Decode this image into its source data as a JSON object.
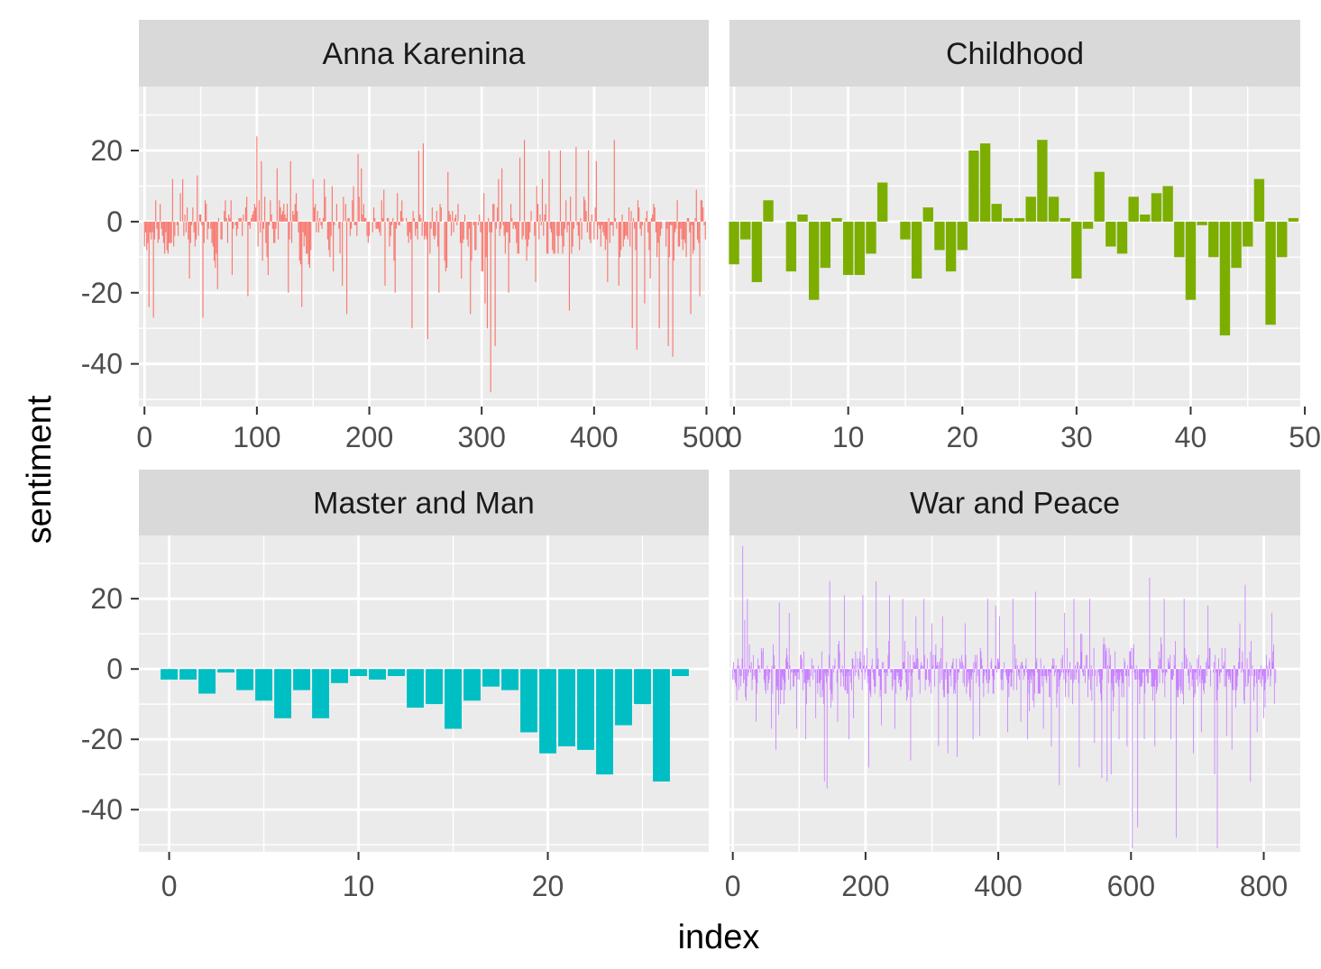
{
  "chart_data": {
    "type": "bar",
    "facet_layout": "2x2",
    "scales": "free_x",
    "xlabel": "index",
    "ylabel": "sentiment",
    "ylim": [
      -52,
      38
    ],
    "y_ticks": [
      20,
      0,
      -20,
      -40
    ],
    "legend": "none",
    "panel_background": "#EBEBEB",
    "strip_background": "#D9D9D9",
    "grid": true,
    "panels": [
      {
        "name": "Anna Karenina",
        "color": "#F8766D",
        "xlim": [
          -5,
          502
        ],
        "x_ticks": [
          0,
          100,
          200,
          300,
          400,
          500
        ],
        "bar_width": 0.9,
        "series_generated": true,
        "n": 500,
        "seed": 11,
        "spread": 7,
        "bias": -2,
        "peaks": [
          [
            4,
            -24
          ],
          [
            8,
            -27
          ],
          [
            20,
            -8
          ],
          [
            25,
            12
          ],
          [
            34,
            12
          ],
          [
            47,
            13
          ],
          [
            52,
            -27
          ],
          [
            65,
            -19
          ],
          [
            78,
            -15
          ],
          [
            92,
            -21
          ],
          [
            100,
            24
          ],
          [
            104,
            17
          ],
          [
            110,
            -15
          ],
          [
            118,
            15
          ],
          [
            128,
            -20
          ],
          [
            130,
            17
          ],
          [
            140,
            -24
          ],
          [
            150,
            12
          ],
          [
            160,
            12
          ],
          [
            168,
            -14
          ],
          [
            176,
            -18
          ],
          [
            180,
            -26
          ],
          [
            190,
            19
          ],
          [
            193,
            15
          ],
          [
            214,
            -18
          ],
          [
            223,
            -20
          ],
          [
            238,
            -30
          ],
          [
            244,
            20
          ],
          [
            248,
            22
          ],
          [
            252,
            -33
          ],
          [
            262,
            -20
          ],
          [
            270,
            14
          ],
          [
            282,
            -16
          ],
          [
            290,
            -26
          ],
          [
            301,
            -14
          ],
          [
            303,
            -23
          ],
          [
            305,
            -30
          ],
          [
            308,
            -48
          ],
          [
            312,
            -35
          ],
          [
            318,
            15
          ],
          [
            324,
            -20
          ],
          [
            334,
            18
          ],
          [
            338,
            23
          ],
          [
            348,
            -17
          ],
          [
            354,
            12
          ],
          [
            360,
            20
          ],
          [
            370,
            20
          ],
          [
            378,
            -25
          ],
          [
            384,
            21
          ],
          [
            395,
            20
          ],
          [
            402,
            17
          ],
          [
            412,
            -17
          ],
          [
            418,
            23
          ],
          [
            422,
            -18
          ],
          [
            434,
            -30
          ],
          [
            438,
            -36
          ],
          [
            445,
            -23
          ],
          [
            450,
            -16
          ],
          [
            458,
            -30
          ],
          [
            466,
            -35
          ],
          [
            470,
            -38
          ],
          [
            482,
            -10
          ],
          [
            486,
            -26
          ],
          [
            494,
            -21
          ]
        ]
      },
      {
        "name": "Childhood",
        "color": "#7CAE00",
        "xlim": [
          -0.4,
          49.6
        ],
        "x_ticks": [
          0,
          10,
          20,
          30,
          40,
          50
        ],
        "bar_width": 0.9,
        "x": [
          0,
          1,
          2,
          3,
          4,
          5,
          6,
          7,
          8,
          9,
          10,
          11,
          12,
          13,
          14,
          15,
          16,
          17,
          18,
          19,
          20,
          21,
          22,
          23,
          24,
          25,
          26,
          27,
          28,
          29,
          30,
          31,
          32,
          33,
          34,
          35,
          36,
          37,
          38,
          39,
          40,
          41,
          42,
          43,
          44,
          45,
          46,
          47,
          48,
          49
        ],
        "values": [
          -12,
          -5,
          -17,
          6,
          0,
          -14,
          2,
          -22,
          -13,
          1,
          -15,
          -15,
          -9,
          11,
          0,
          -5,
          -16,
          4,
          -8,
          -14,
          -8,
          20,
          22,
          5,
          1,
          1,
          7,
          23,
          7,
          1,
          -16,
          -2,
          14,
          -7,
          -9,
          7,
          2,
          8,
          10,
          -10,
          -22,
          -1,
          -10,
          -32,
          -13,
          -7,
          12,
          -29,
          -10,
          1
        ]
      },
      {
        "name": "Master and Man",
        "color": "#00BFC4",
        "xlim": [
          -1.6,
          28.5
        ],
        "x_ticks": [
          0,
          10,
          20
        ],
        "bar_width": 0.9,
        "x": [
          0,
          1,
          2,
          3,
          4,
          5,
          6,
          7,
          8,
          9,
          10,
          11,
          12,
          13,
          14,
          15,
          16,
          17,
          18,
          19,
          20,
          21,
          22,
          23,
          24,
          25,
          26,
          27
        ],
        "values": [
          -3,
          -3,
          -7,
          -1,
          -6,
          -9,
          -14,
          -6,
          -14,
          -4,
          -2,
          -3,
          -2,
          -11,
          -10,
          -17,
          -9,
          -5,
          -6,
          -18,
          -24,
          -22,
          -23,
          -30,
          -16,
          -10,
          -32,
          -2
        ]
      },
      {
        "name": "War and Peace",
        "color": "#C77CFF",
        "xlim": [
          -5,
          855
        ],
        "x_ticks": [
          0,
          200,
          400,
          600,
          800
        ],
        "bar_width": 0.9,
        "series_generated": true,
        "n": 819,
        "seed": 23,
        "spread": 6,
        "bias": -1.5,
        "peaks": [
          [
            15,
            35
          ],
          [
            18,
            14
          ],
          [
            22,
            20
          ],
          [
            35,
            -15
          ],
          [
            58,
            -17
          ],
          [
            65,
            -23
          ],
          [
            70,
            19
          ],
          [
            85,
            16
          ],
          [
            96,
            -17
          ],
          [
            110,
            -20
          ],
          [
            125,
            -14
          ],
          [
            138,
            -32
          ],
          [
            142,
            -34
          ],
          [
            146,
            25
          ],
          [
            158,
            -15
          ],
          [
            168,
            21
          ],
          [
            175,
            -20
          ],
          [
            182,
            -14
          ],
          [
            196,
            21
          ],
          [
            205,
            -28
          ],
          [
            216,
            25
          ],
          [
            224,
            -16
          ],
          [
            236,
            21
          ],
          [
            244,
            -17
          ],
          [
            256,
            20
          ],
          [
            268,
            -26
          ],
          [
            276,
            15
          ],
          [
            288,
            20
          ],
          [
            300,
            13
          ],
          [
            310,
            -22
          ],
          [
            316,
            15
          ],
          [
            324,
            -24
          ],
          [
            338,
            -25
          ],
          [
            350,
            13
          ],
          [
            362,
            -20
          ],
          [
            372,
            -19
          ],
          [
            384,
            20
          ],
          [
            396,
            18
          ],
          [
            402,
            15
          ],
          [
            414,
            -18
          ],
          [
            422,
            20
          ],
          [
            434,
            -15
          ],
          [
            444,
            -20
          ],
          [
            456,
            22
          ],
          [
            468,
            -17
          ],
          [
            480,
            -22
          ],
          [
            492,
            -33
          ],
          [
            500,
            16
          ],
          [
            514,
            20
          ],
          [
            522,
            -28
          ],
          [
            538,
            20
          ],
          [
            545,
            -21
          ],
          [
            556,
            -31
          ],
          [
            564,
            -32
          ],
          [
            570,
            -30
          ],
          [
            582,
            -20
          ],
          [
            594,
            -22
          ],
          [
            602,
            -51
          ],
          [
            610,
            -45
          ],
          [
            620,
            -20
          ],
          [
            628,
            26
          ],
          [
            636,
            -22
          ],
          [
            650,
            20
          ],
          [
            660,
            -20
          ],
          [
            668,
            -48
          ],
          [
            680,
            20
          ],
          [
            694,
            -24
          ],
          [
            706,
            -18
          ],
          [
            716,
            18
          ],
          [
            726,
            -30
          ],
          [
            730,
            -51
          ],
          [
            744,
            -19
          ],
          [
            752,
            -23
          ],
          [
            764,
            13
          ],
          [
            772,
            24
          ],
          [
            780,
            -32
          ],
          [
            790,
            -18
          ],
          [
            800,
            -14
          ],
          [
            812,
            16
          ],
          [
            816,
            -10
          ]
        ]
      }
    ]
  }
}
